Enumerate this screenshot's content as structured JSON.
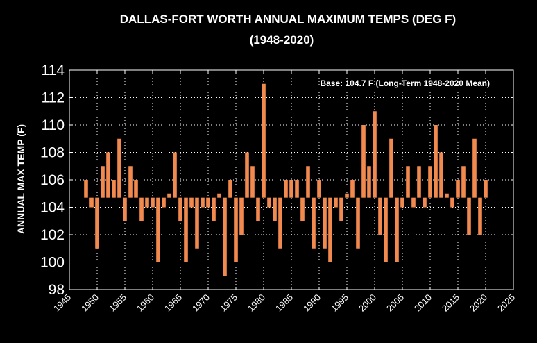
{
  "chart_data": {
    "type": "bar",
    "title": "DALLAS-FORT WORTH ANNUAL MAXIMUM TEMPS (DEG F)",
    "subtitle": "(1948-2020)",
    "ylabel": "ANNUAL MAX TEMP (F)",
    "xlabel": "",
    "annotation": "Base: 104.7 F (Long-Term 1948-2020 Mean)",
    "base": 104.7,
    "xlim": [
      1945,
      2025
    ],
    "ylim": [
      98,
      114
    ],
    "xticks": [
      "1945",
      "1950",
      "1955",
      "1960",
      "1965",
      "1970",
      "1975",
      "1980",
      "1985",
      "1990",
      "1995",
      "2000",
      "2005",
      "2010",
      "2015",
      "2020",
      "2025"
    ],
    "yticks": [
      "98",
      "100",
      "102",
      "104",
      "106",
      "108",
      "110",
      "112",
      "114"
    ],
    "grid": true,
    "bar_color": "#f28a4f",
    "years": [
      1948,
      1949,
      1950,
      1951,
      1952,
      1953,
      1954,
      1955,
      1956,
      1957,
      1958,
      1959,
      1960,
      1961,
      1962,
      1963,
      1964,
      1965,
      1966,
      1967,
      1968,
      1969,
      1970,
      1971,
      1972,
      1973,
      1974,
      1975,
      1976,
      1977,
      1978,
      1979,
      1980,
      1981,
      1982,
      1983,
      1984,
      1985,
      1986,
      1987,
      1988,
      1989,
      1990,
      1991,
      1992,
      1993,
      1994,
      1995,
      1996,
      1997,
      1998,
      1999,
      2000,
      2001,
      2002,
      2003,
      2004,
      2005,
      2006,
      2007,
      2008,
      2009,
      2010,
      2011,
      2012,
      2013,
      2014,
      2015,
      2016,
      2017,
      2018,
      2019,
      2020
    ],
    "values": [
      106,
      104,
      101,
      107,
      108,
      106,
      109,
      103,
      107,
      106,
      103,
      104,
      104,
      100,
      104,
      105,
      108,
      103,
      100,
      104,
      101,
      104,
      104,
      103,
      105,
      99,
      106,
      100,
      102,
      108,
      107,
      103,
      113,
      104,
      103,
      101,
      106,
      106,
      106,
      103,
      107,
      101,
      106,
      101,
      100,
      104,
      103,
      105,
      106,
      101,
      110,
      107,
      111,
      102,
      100,
      109,
      100,
      104,
      107,
      104,
      107,
      104,
      107,
      110,
      108,
      105,
      104,
      106,
      107,
      102,
      109,
      102,
      106
    ]
  }
}
